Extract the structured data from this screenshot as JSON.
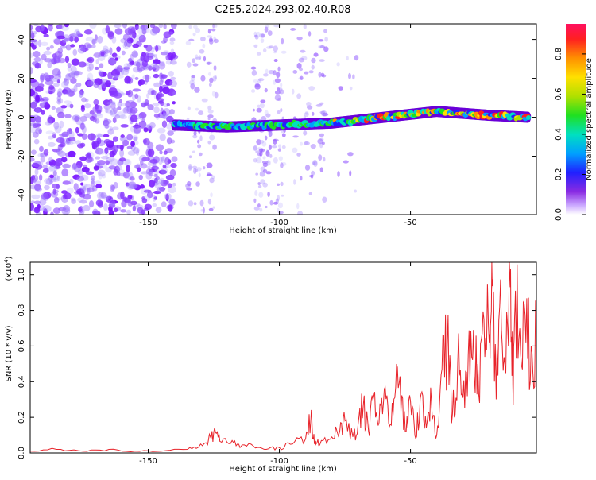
{
  "title": "C2E5.2024.293.02.40.R08",
  "chart_data": [
    {
      "type": "heatmap",
      "xlabel": "Height of straight line (km)",
      "ylabel": "Frequency (Hz)",
      "xlim": [
        -195,
        -2
      ],
      "ylim": [
        -50,
        48
      ],
      "xticks": [
        -150,
        -100,
        -50
      ],
      "xtick_labels": [
        "-150",
        "-100",
        "-50"
      ],
      "yticks": [
        -40,
        -20,
        0,
        20,
        40
      ],
      "ytick_labels": [
        "-40",
        "-20",
        "0",
        "20",
        "40"
      ],
      "colorbar": {
        "label": "Normalized spectral amplitude",
        "range": [
          0,
          0.95
        ],
        "ticks": [
          0,
          0.2,
          0.4,
          0.6,
          0.8
        ],
        "tick_labels": [
          "0.0",
          "0.2",
          "0.4",
          "0.6",
          "0.8"
        ],
        "colormap": "rainbow"
      },
      "signal_band": {
        "x": [
          -140,
          -120,
          -100,
          -80,
          -60,
          -40,
          -20,
          -5
        ],
        "center_frequency_hz": [
          -4,
          -5,
          -4,
          -3,
          0,
          3,
          1,
          0
        ]
      },
      "grid": false
    },
    {
      "type": "line",
      "xlabel": "Height of straight line (km)",
      "ylabel": "SNR (10 * v/v)",
      "y_multiplier_label": "(x10",
      "y_multiplier_exp": "4",
      "xlim": [
        -195,
        -2
      ],
      "ylim": [
        0,
        1.07
      ],
      "xticks": [
        -150,
        -100,
        -50
      ],
      "xtick_labels": [
        "-150",
        "-100",
        "-50"
      ],
      "yticks": [
        0,
        0.2,
        0.4,
        0.6,
        0.8,
        1.0
      ],
      "ytick_labels": [
        "0.0",
        "0.2",
        "0.4",
        "0.6",
        "0.8",
        "1.0"
      ],
      "series": [
        {
          "color": "#e8232a",
          "x": [
            -195,
            -185,
            -175,
            -165,
            -155,
            -145,
            -135,
            -130,
            -126,
            -124,
            -122,
            -118,
            -115,
            -110,
            -105,
            -100,
            -95,
            -90,
            -88,
            -87,
            -86,
            -84,
            -80,
            -77,
            -75,
            -72,
            -70,
            -68,
            -66,
            -64,
            -62,
            -60,
            -58,
            -56,
            -54,
            -52,
            -50,
            -48,
            -46,
            -44,
            -42,
            -40,
            -38,
            -36,
            -34,
            -32,
            -30,
            -28,
            -26,
            -24,
            -22,
            -20,
            -19,
            -18,
            -16,
            -14,
            -12,
            -11,
            -10,
            -8,
            -6,
            -4,
            -2
          ],
          "y": [
            0.01,
            0.02,
            0.01,
            0.02,
            0.01,
            0.01,
            0.02,
            0.05,
            0.08,
            0.11,
            0.06,
            0.07,
            0.03,
            0.04,
            0.02,
            0.03,
            0.05,
            0.08,
            0.19,
            0.08,
            0.05,
            0.07,
            0.09,
            0.12,
            0.18,
            0.09,
            0.16,
            0.27,
            0.12,
            0.32,
            0.17,
            0.36,
            0.15,
            0.31,
            0.43,
            0.12,
            0.29,
            0.08,
            0.33,
            0.14,
            0.28,
            0.1,
            0.47,
            0.6,
            0.22,
            0.51,
            0.31,
            0.55,
            0.69,
            0.33,
            0.75,
            0.62,
            1.07,
            0.4,
            0.82,
            0.5,
            0.93,
            0.38,
            0.91,
            0.55,
            0.62,
            0.6,
            0.66
          ]
        }
      ],
      "grid": false
    }
  ]
}
